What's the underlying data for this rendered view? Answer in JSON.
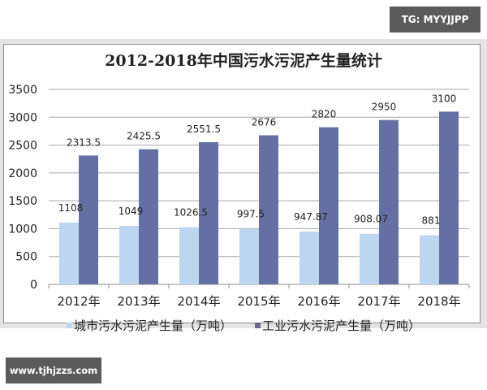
{
  "watermarks": {
    "top_right": "TG: MYYJJPP",
    "bottom_left": "www.tjhjzzs.com"
  },
  "colors": {
    "city": "#bcd6ef",
    "industrial": "#6470a4",
    "gridline": "#a6a6a6",
    "badge_bg": "#5b5b5b"
  },
  "legend": {
    "city_label": "城市污水污泥产生量（万吨）",
    "industrial_label": "工业污水污泥产生量（万吨）"
  },
  "chart_data": {
    "type": "bar",
    "title": "2012-2018年中国污水污泥产生量统计",
    "xlabel": "",
    "ylabel": "",
    "ylim": [
      0,
      3500
    ],
    "yticks": [
      0,
      500,
      1000,
      1500,
      2000,
      2500,
      3000,
      3500
    ],
    "grid": true,
    "legend_position": "bottom",
    "categories": [
      "2012年",
      "2013年",
      "2014年",
      "2015年",
      "2016年",
      "2017年",
      "2018年"
    ],
    "series": [
      {
        "name": "城市污水污泥产生量（万吨）",
        "values": [
          1108,
          1049,
          1026.5,
          997.5,
          947.87,
          908.07,
          881
        ],
        "labels": [
          "1108",
          "1049",
          "1026.5",
          "997.5",
          "947.87",
          "908.07",
          "881"
        ]
      },
      {
        "name": "工业污水污泥产生量（万吨）",
        "values": [
          2313.5,
          2425.5,
          2551.5,
          2676,
          2820,
          2950,
          3100
        ],
        "labels": [
          "2313.5",
          "2425.5",
          "2551.5",
          "2676",
          "2820",
          "2950",
          "3100"
        ]
      }
    ]
  }
}
